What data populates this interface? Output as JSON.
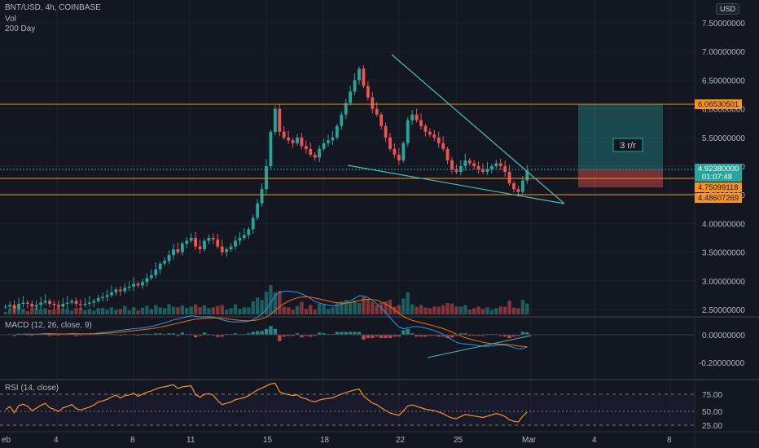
{
  "header": {
    "symbol_line": "BNT/USD, 4h, COINBASE",
    "indicator_vol": "Vol",
    "indicator_ma": "200 Day",
    "currency_button": "USD"
  },
  "price_axis": {
    "ticks": [
      "7.50000000",
      "7.00000000",
      "6.50000000",
      "6.00000000",
      "5.50000000",
      "5.00000000",
      "4.50000000",
      "4.00000000",
      "3.50000000",
      "3.00000000",
      "2.50000000"
    ]
  },
  "price_labels": {
    "resistance": "6.06530501",
    "current": "4.92380000",
    "countdown": "01:07:48",
    "support1": "4.75099118",
    "support2": "4.48607269"
  },
  "risk_reward": {
    "label": "3 r/r"
  },
  "macd": {
    "title": "MACD (12, 26, close, 9)",
    "ticks": [
      "0.00000000",
      "-0.20000000"
    ]
  },
  "rsi": {
    "title": "RSI (14, close)",
    "ticks": [
      "75.00",
      "50.00",
      "25.00"
    ]
  },
  "time_axis": {
    "labels": [
      "eb",
      "4",
      "8",
      "11",
      "15",
      "18",
      "22",
      "25",
      "Mar",
      "4",
      "8"
    ]
  },
  "colors": {
    "background": "#131722",
    "bull": "#26a69a",
    "bear": "#ef5350",
    "level_line": "#f7931a",
    "trendline": "#4dbcb5",
    "macd_line": "#2196f3",
    "signal_line": "#ff6d00",
    "rsi_line": "#f7931a"
  },
  "chart_data": {
    "type": "candlestick",
    "y_range": [
      2.4,
      7.8
    ],
    "levels": [
      6.0653,
      4.75099,
      4.48607
    ],
    "current_price": 4.9238,
    "closes": [
      2.55,
      2.58,
      2.52,
      2.6,
      2.62,
      2.6,
      2.55,
      2.58,
      2.62,
      2.65,
      2.6,
      2.58,
      2.55,
      2.6,
      2.62,
      2.65,
      2.6,
      2.58,
      2.6,
      2.62,
      2.65,
      2.7,
      2.72,
      2.75,
      2.8,
      2.85,
      2.82,
      2.88,
      2.9,
      2.95,
      2.92,
      2.98,
      3.05,
      3.1,
      3.2,
      3.3,
      3.35,
      3.45,
      3.55,
      3.5,
      3.65,
      3.7,
      3.75,
      3.6,
      3.55,
      3.7,
      3.75,
      3.72,
      3.6,
      3.5,
      3.55,
      3.6,
      3.7,
      3.75,
      3.8,
      3.9,
      4.1,
      4.35,
      4.6,
      5.0,
      5.6,
      6.0,
      5.6,
      5.5,
      5.45,
      5.4,
      5.5,
      5.35,
      5.3,
      5.2,
      5.15,
      5.3,
      5.4,
      5.45,
      5.5,
      5.7,
      5.9,
      6.1,
      6.3,
      6.5,
      6.7,
      6.4,
      6.2,
      6.0,
      5.9,
      5.7,
      5.5,
      5.3,
      5.2,
      5.1,
      5.4,
      5.8,
      5.9,
      5.8,
      5.7,
      5.6,
      5.55,
      5.5,
      5.4,
      5.3,
      5.1,
      4.95,
      4.9,
      5.0,
      5.1,
      5.05,
      5.0,
      4.95,
      4.9,
      4.95,
      5.0,
      5.05,
      5.0,
      4.9,
      4.7,
      4.6,
      4.55,
      4.75,
      4.92
    ]
  }
}
